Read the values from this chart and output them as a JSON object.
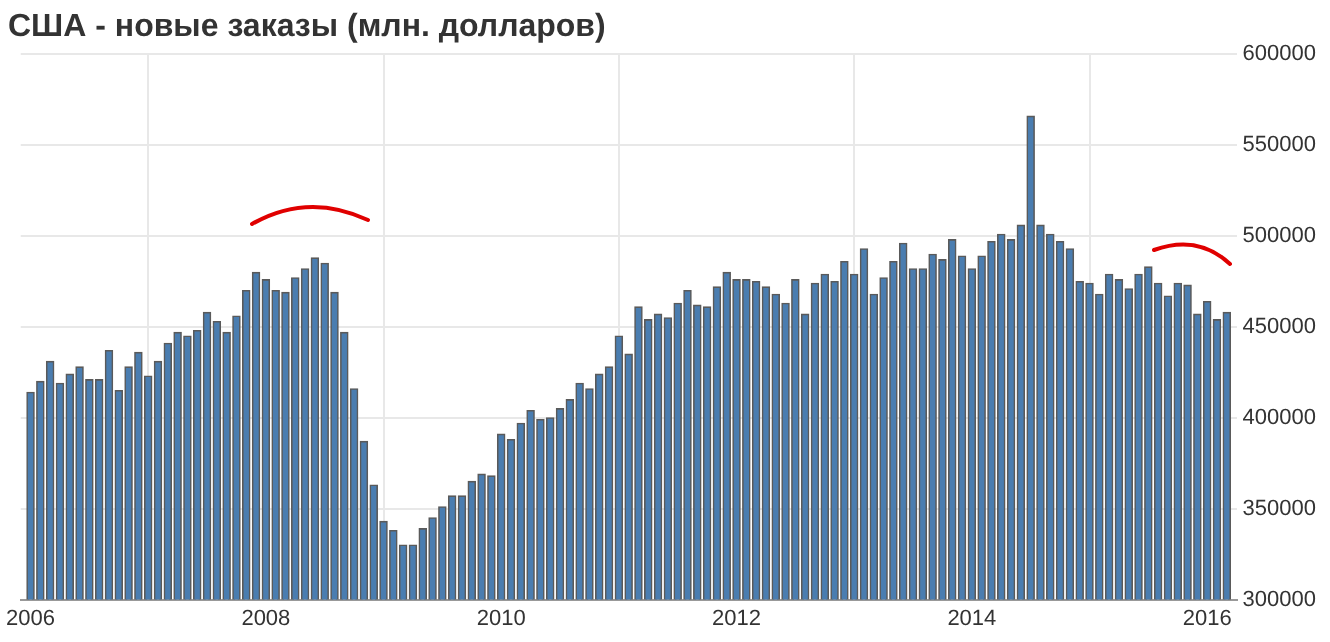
{
  "chart_data": {
    "type": "bar",
    "title": "США - новые заказы (млн. долларов)",
    "x": [
      "2006-01",
      "2006-02",
      "2006-03",
      "2006-04",
      "2006-05",
      "2006-06",
      "2006-07",
      "2006-08",
      "2006-09",
      "2006-10",
      "2006-11",
      "2006-12",
      "2007-01",
      "2007-02",
      "2007-03",
      "2007-04",
      "2007-05",
      "2007-06",
      "2007-07",
      "2007-08",
      "2007-09",
      "2007-10",
      "2007-11",
      "2007-12",
      "2008-01",
      "2008-02",
      "2008-03",
      "2008-04",
      "2008-05",
      "2008-06",
      "2008-07",
      "2008-08",
      "2008-09",
      "2008-10",
      "2008-11",
      "2008-12",
      "2009-01",
      "2009-02",
      "2009-03",
      "2009-04",
      "2009-05",
      "2009-06",
      "2009-07",
      "2009-08",
      "2009-09",
      "2009-10",
      "2009-11",
      "2009-12",
      "2010-01",
      "2010-02",
      "2010-03",
      "2010-04",
      "2010-05",
      "2010-06",
      "2010-07",
      "2010-08",
      "2010-09",
      "2010-10",
      "2010-11",
      "2010-12",
      "2011-01",
      "2011-02",
      "2011-03",
      "2011-04",
      "2011-05",
      "2011-06",
      "2011-07",
      "2011-08",
      "2011-09",
      "2011-10",
      "2011-11",
      "2011-12",
      "2012-01",
      "2012-02",
      "2012-03",
      "2012-04",
      "2012-05",
      "2012-06",
      "2012-07",
      "2012-08",
      "2012-09",
      "2012-10",
      "2012-11",
      "2012-12",
      "2013-01",
      "2013-02",
      "2013-03",
      "2013-04",
      "2013-05",
      "2013-06",
      "2013-07",
      "2013-08",
      "2013-09",
      "2013-10",
      "2013-11",
      "2013-12",
      "2014-01",
      "2014-02",
      "2014-03",
      "2014-04",
      "2014-05",
      "2014-06",
      "2014-07",
      "2014-08",
      "2014-09",
      "2014-10",
      "2014-11",
      "2014-12",
      "2015-01",
      "2015-02",
      "2015-03",
      "2015-04",
      "2015-05",
      "2015-06",
      "2015-07",
      "2015-08",
      "2015-09",
      "2015-10",
      "2015-11",
      "2015-12",
      "2016-01",
      "2016-02",
      "2016-03"
    ],
    "values": [
      414000,
      420000,
      431000,
      419000,
      424000,
      428000,
      421000,
      421000,
      437000,
      415000,
      428000,
      436000,
      423000,
      431000,
      441000,
      447000,
      445000,
      448000,
      458000,
      453000,
      447000,
      456000,
      470000,
      480000,
      476000,
      470000,
      469000,
      477000,
      482000,
      488000,
      485000,
      469000,
      447000,
      416000,
      387000,
      363000,
      343000,
      338000,
      330000,
      330000,
      339000,
      345000,
      351000,
      357000,
      357000,
      365000,
      369000,
      368000,
      391000,
      388000,
      397000,
      404000,
      399000,
      400000,
      405000,
      410000,
      419000,
      416000,
      424000,
      428000,
      445000,
      435000,
      461000,
      454000,
      457000,
      455000,
      463000,
      470000,
      462000,
      461000,
      472000,
      480000,
      476000,
      476000,
      475000,
      472000,
      468000,
      463000,
      476000,
      457000,
      474000,
      479000,
      475000,
      486000,
      479000,
      493000,
      468000,
      477000,
      486000,
      496000,
      482000,
      482000,
      490000,
      487000,
      498000,
      489000,
      482000,
      489000,
      497000,
      501000,
      498000,
      506000,
      566000,
      506000,
      501000,
      497000,
      493000,
      475000,
      474000,
      468000,
      479000,
      476000,
      471000,
      479000,
      483000,
      474000,
      467000,
      474000,
      473000,
      457000,
      464000,
      454000,
      458000
    ],
    "color": "#4a7db0",
    "xlim": [
      "2005-12",
      "2016-04"
    ],
    "xticks": [
      "2006",
      "2008",
      "2010",
      "2012",
      "2014",
      "2016"
    ],
    "ylim": [
      300000,
      600000
    ],
    "yticks": [
      300000,
      350000,
      400000,
      450000,
      500000,
      550000,
      600000
    ],
    "grid": true
  }
}
